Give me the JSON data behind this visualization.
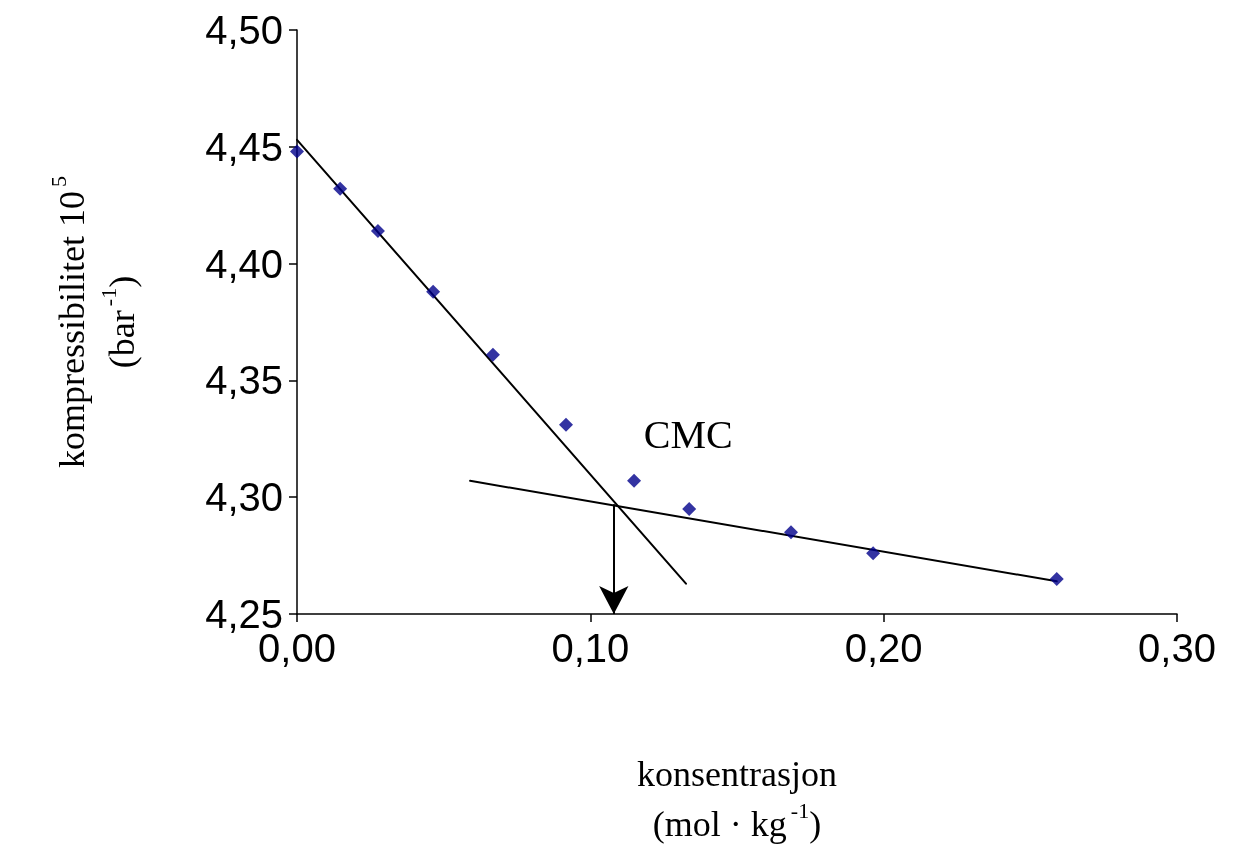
{
  "chart_data": {
    "type": "scatter",
    "xlabel": "konsentrasjon\n(mol · kg$^{-1}$)",
    "ylabel": "kompressibilitet 10$^{5}$\n(bar$^{-1}$)",
    "marker": "diamond",
    "series": [
      {
        "color": "#00008b",
        "x": [
          0,
          0.0147,
          0.0276,
          0.0464,
          0.0668,
          0.0917,
          0.1149,
          0.1337,
          0.1684,
          0.1964,
          0.259
        ],
        "values": [
          4.448,
          4.432,
          4.414,
          4.388,
          4.361,
          4.331,
          4.307,
          4.295,
          4.285,
          4.276,
          4.265
        ]
      },
      {
        "type": "line",
        "color": "#000000",
        "marker": "none",
        "line_style": "solid",
        "x": [
          0,
          0.1326
        ],
        "values": [
          4.453,
          4.263
        ]
      },
      {
        "type": "line",
        "color": "#000000",
        "marker": "none",
        "line_style": "solid",
        "x": [
          0.059,
          0.259
        ],
        "values": [
          4.307,
          4.264
        ]
      }
    ],
    "xlim": [
      0,
      0.3
    ],
    "xticks": [
      {
        "value": 0,
        "label": "0,00"
      },
      {
        "value": 0.1,
        "label": "0,10"
      },
      {
        "value": 0.2,
        "label": "0,20"
      },
      {
        "value": 0.3,
        "label": "0,30"
      }
    ],
    "ylim": [
      4.25,
      4.5
    ],
    "yticks": [
      {
        "value": 4.25,
        "label": "4,25"
      },
      {
        "value": 4.3,
        "label": "4,30"
      },
      {
        "value": 4.35,
        "label": "4,35"
      },
      {
        "value": 4.4,
        "label": "4,40"
      },
      {
        "value": 4.45,
        "label": "4,45"
      },
      {
        "value": 4.5,
        "label": "4,50"
      }
    ],
    "annotations": [
      {
        "text": "CMC",
        "x": 0.108,
        "y": 4.297
      }
    ],
    "grid": false
  }
}
